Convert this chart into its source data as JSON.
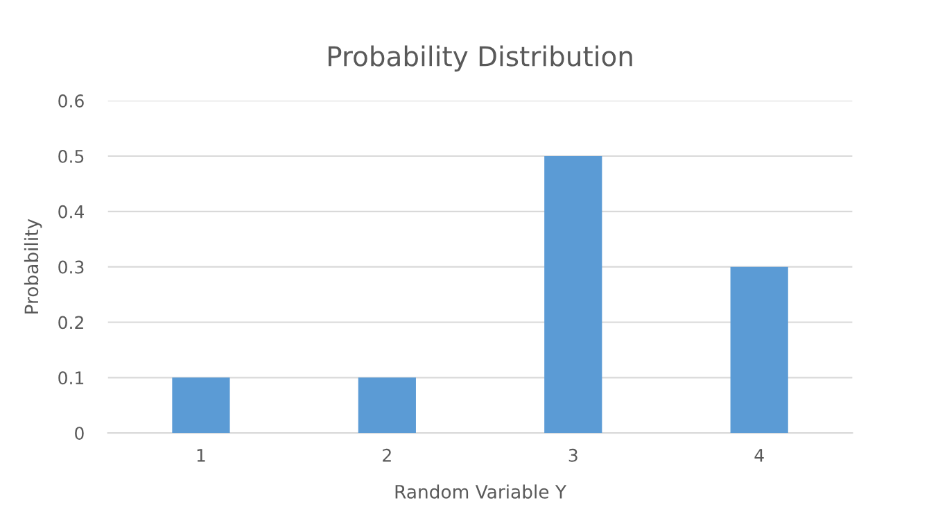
{
  "chart_data": {
    "type": "bar",
    "title": "Probability Distribution",
    "xlabel": "Random Variable Y",
    "ylabel": "Probability",
    "categories": [
      "1",
      "2",
      "3",
      "4"
    ],
    "values": [
      0.1,
      0.1,
      0.5,
      0.3
    ],
    "color": "#5b9bd5",
    "ylim": [
      0,
      0.6
    ],
    "yticks": [
      0,
      0.1,
      0.2,
      0.3,
      0.4,
      0.5,
      0.6
    ],
    "grid": "y"
  }
}
